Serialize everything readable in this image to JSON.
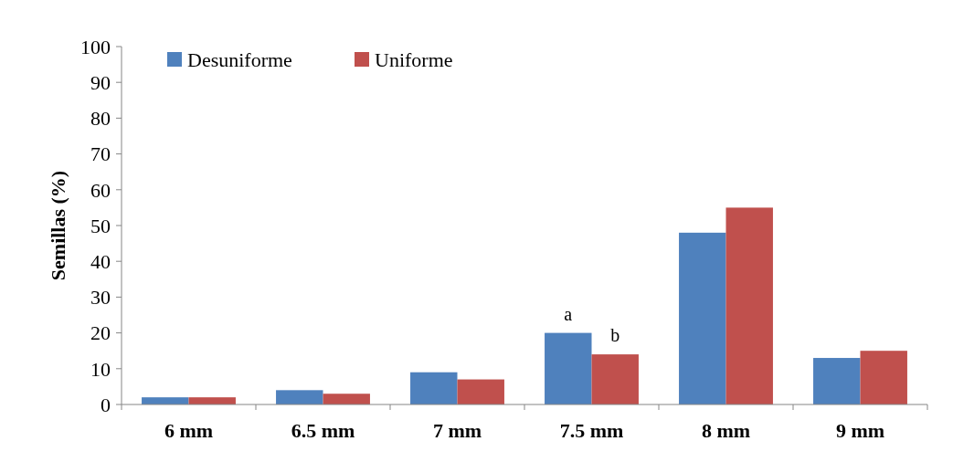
{
  "chart_data": {
    "type": "bar",
    "ylabel": "Semillas (%)",
    "categories": [
      "6 mm",
      "6.5 mm",
      "7 mm",
      "7.5 mm",
      "8 mm",
      "9 mm"
    ],
    "series": [
      {
        "name": "Desuniforme",
        "color": "#4f81bd",
        "values": [
          2,
          4,
          9,
          20,
          48,
          13
        ]
      },
      {
        "name": "Uniforme",
        "color": "#c0504d",
        "values": [
          2,
          3,
          7,
          14,
          55,
          15
        ]
      }
    ],
    "ylim": [
      0,
      100
    ],
    "yticks": [
      0,
      10,
      20,
      30,
      40,
      50,
      60,
      70,
      80,
      90,
      100
    ],
    "grid": false,
    "legend": "top left",
    "annotations": [
      {
        "text": "a",
        "y": 20
      },
      {
        "text": "b",
        "y": 14
      }
    ]
  }
}
